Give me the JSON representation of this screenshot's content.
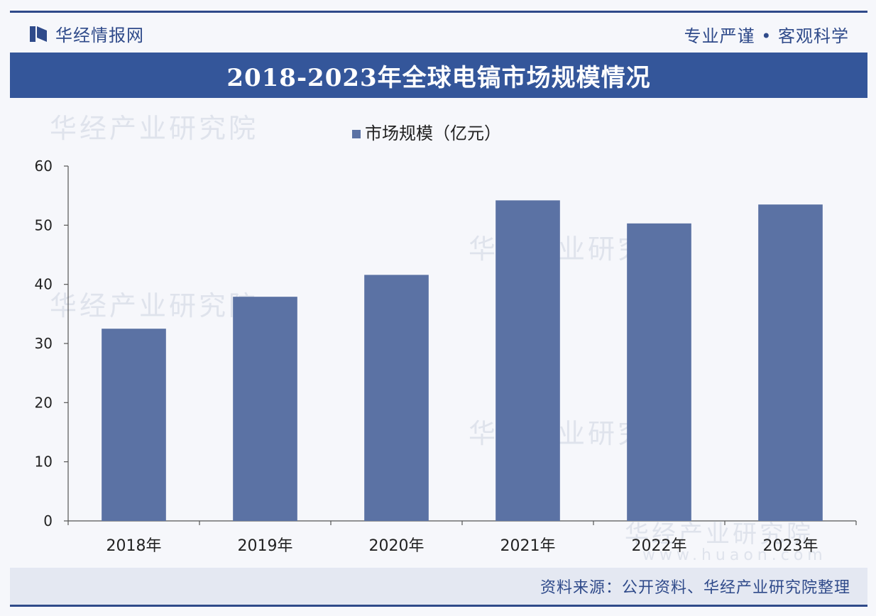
{
  "header": {
    "brand": "华经情报网",
    "slogan": "专业严谨 • 客观科学"
  },
  "title": "2018-2023年全球电镐市场规模情况",
  "watermark": "华经产业研究院",
  "watermark_url": "www.huaon.com",
  "source": "资料来源：公开资料、华经产业研究院整理",
  "colors": {
    "brand": "#2f4a8a",
    "bar": "#5b72a4",
    "title_band": "#34569a"
  },
  "chart_data": {
    "type": "bar",
    "categories": [
      "2018年",
      "2019年",
      "2020年",
      "2021年",
      "2022年",
      "2023年"
    ],
    "series": [
      {
        "name": "市场规模（亿元）",
        "values": [
          32.5,
          37.9,
          41.6,
          54.2,
          50.3,
          53.5
        ]
      }
    ],
    "ylim": [
      0,
      60
    ],
    "yticks": [
      0,
      10,
      20,
      30,
      40,
      50,
      60
    ],
    "legend": "top-center",
    "grid": false
  }
}
